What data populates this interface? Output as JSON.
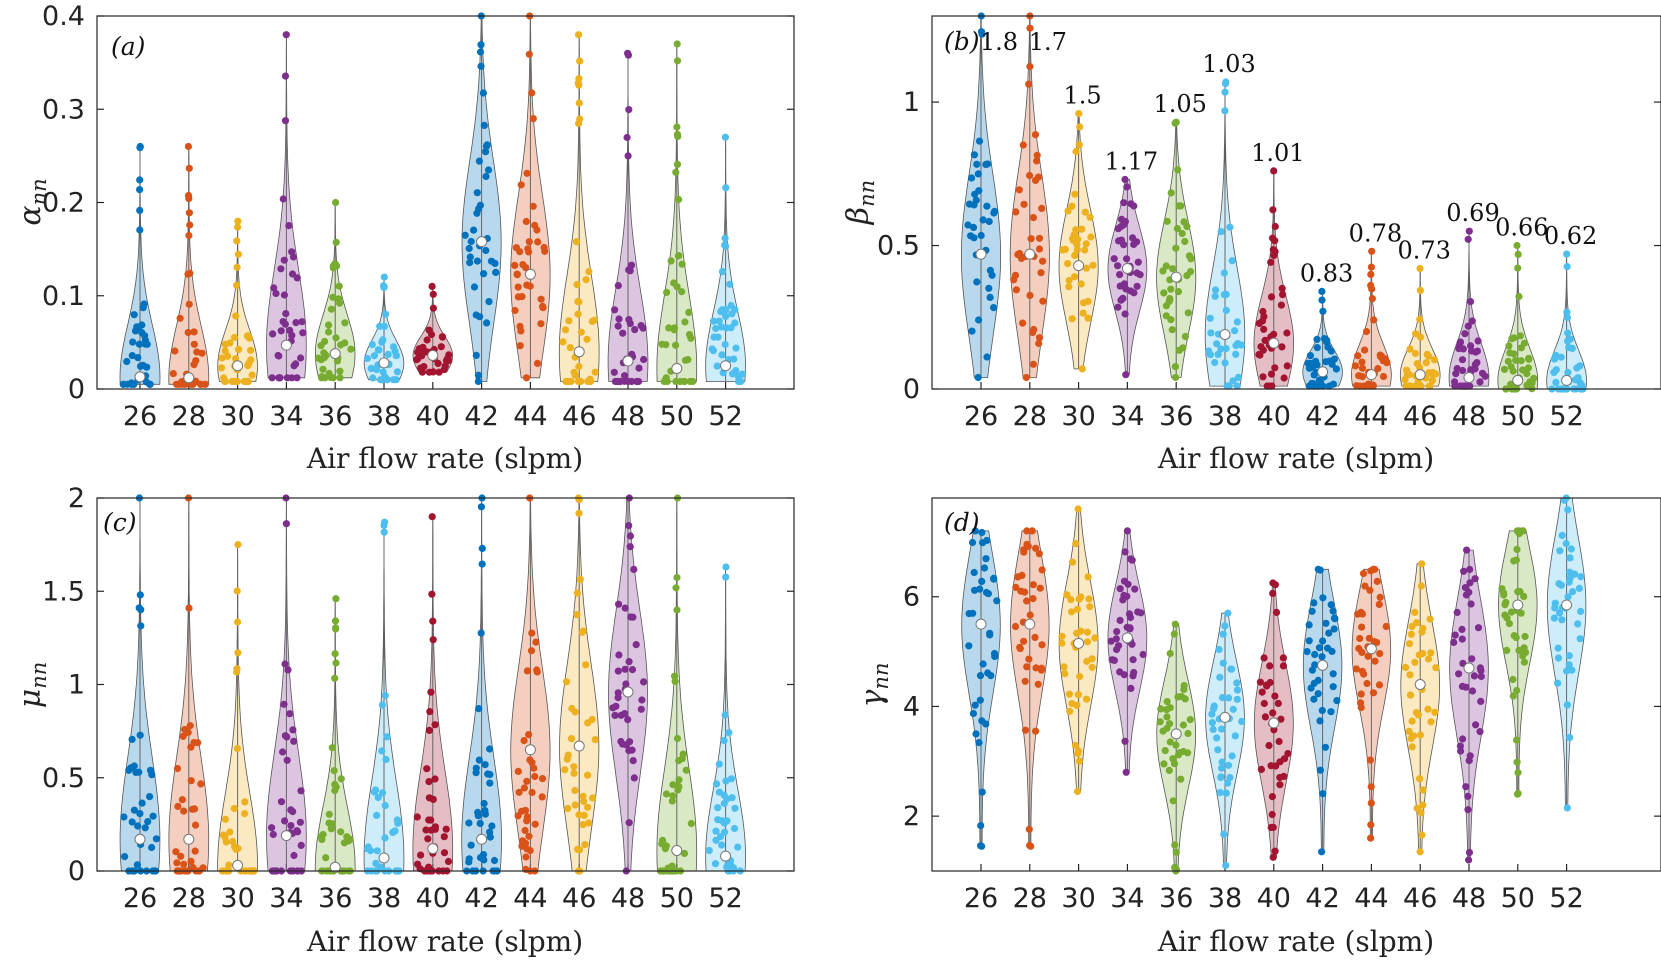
{
  "colors": {
    "26": "#0072bd",
    "28": "#d95319",
    "30": "#edb120",
    "34": "#7e2f8e",
    "36": "#77ac30",
    "38": "#4dbeee",
    "40": "#a2142f",
    "42": "#0072bd",
    "44": "#d95319",
    "46": "#edb120",
    "48": "#7e2f8e",
    "50": "#77ac30",
    "52": "#4dbeee"
  },
  "chart_data": [
    {
      "type": "violin",
      "panel": "(a)",
      "title": "",
      "xlabel": "Air flow rate (slpm)",
      "ylabel_symbol": "α",
      "ylabel_sub": "nn",
      "categories": [
        "26",
        "28",
        "30",
        "34",
        "36",
        "38",
        "40",
        "42",
        "44",
        "46",
        "48",
        "50",
        "52"
      ],
      "ylim": [
        0,
        0.4
      ],
      "yticks": [
        0,
        0.1,
        0.2,
        0.3,
        0.4
      ],
      "ytick_labels": [
        "0",
        "0.1",
        "0.2",
        "0.3",
        "0.4"
      ],
      "medians": [
        0.013,
        0.012,
        0.025,
        0.047,
        0.038,
        0.028,
        0.036,
        0.158,
        0.123,
        0.04,
        0.03,
        0.022,
        0.025
      ],
      "mins": [
        0.005,
        0.005,
        0.008,
        0.012,
        0.012,
        0.01,
        0.018,
        0.008,
        0.012,
        0.008,
        0.008,
        0.008,
        0.008
      ],
      "maxs": [
        0.26,
        0.26,
        0.18,
        0.38,
        0.2,
        0.12,
        0.11,
        0.4,
        0.4,
        0.38,
        0.36,
        0.37,
        0.27
      ],
      "annotations": []
    },
    {
      "type": "violin",
      "panel": "(b)",
      "title": "",
      "xlabel": "Air flow rate (slpm)",
      "ylabel_symbol": "β",
      "ylabel_sub": "nn",
      "categories": [
        "26",
        "28",
        "30",
        "34",
        "36",
        "38",
        "40",
        "42",
        "44",
        "46",
        "48",
        "50",
        "52"
      ],
      "ylim": [
        0,
        1.3
      ],
      "yticks": [
        0,
        0.5,
        1
      ],
      "ytick_labels": [
        "0",
        "0.5",
        "1"
      ],
      "medians": [
        0.47,
        0.47,
        0.43,
        0.42,
        0.39,
        0.19,
        0.16,
        0.06,
        0.05,
        0.05,
        0.04,
        0.03,
        0.03
      ],
      "mins": [
        0.04,
        0.04,
        0.07,
        0.05,
        0.04,
        0.01,
        0.01,
        0.01,
        0.01,
        0.01,
        0.01,
        0.0,
        0.0
      ],
      "maxs": [
        1.3,
        1.3,
        0.96,
        0.73,
        0.93,
        1.07,
        0.76,
        0.34,
        0.48,
        0.42,
        0.55,
        0.5,
        0.47
      ],
      "annotations": [
        "1.8",
        "1.7",
        "1.5",
        "1.17",
        "1.05",
        "1.03",
        "1.01",
        "0.83",
        "0.78",
        "0.73",
        "0.69",
        "0.66",
        "0.62"
      ]
    },
    {
      "type": "violin",
      "panel": "(c)",
      "title": "",
      "xlabel": "Air flow rate (slpm)",
      "ylabel_symbol": "μ",
      "ylabel_sub": "nn",
      "categories": [
        "26",
        "28",
        "30",
        "34",
        "36",
        "38",
        "40",
        "42",
        "44",
        "46",
        "48",
        "50",
        "52"
      ],
      "ylim": [
        0,
        2
      ],
      "yticks": [
        0,
        0.5,
        1,
        1.5,
        2
      ],
      "ytick_labels": [
        "0",
        "0.5",
        "1",
        "1.5",
        "2"
      ],
      "medians": [
        0.17,
        0.17,
        0.03,
        0.19,
        0.02,
        0.07,
        0.12,
        0.17,
        0.65,
        0.67,
        0.96,
        0.11,
        0.08
      ],
      "mins": [
        0.0,
        0.0,
        0.0,
        0.0,
        0.0,
        0.0,
        0.0,
        0.0,
        0.0,
        0.0,
        0.0,
        0.0,
        0.0
      ],
      "maxs": [
        2.0,
        2.0,
        1.75,
        2.0,
        1.46,
        1.87,
        1.9,
        2.0,
        2.0,
        2.0,
        2.0,
        2.0,
        1.63
      ],
      "annotations": []
    },
    {
      "type": "violin",
      "panel": "(d)",
      "title": "",
      "xlabel": "Air flow rate (slpm)",
      "ylabel_symbol": "γ",
      "ylabel_sub": "nn",
      "categories": [
        "26",
        "28",
        "30",
        "34",
        "36",
        "38",
        "40",
        "42",
        "44",
        "46",
        "48",
        "50",
        "52"
      ],
      "ylim": [
        1,
        7.8
      ],
      "yticks": [
        2,
        4,
        6
      ],
      "ytick_labels": [
        "2",
        "4",
        "6"
      ],
      "medians": [
        5.5,
        5.5,
        5.15,
        5.25,
        3.5,
        3.8,
        3.7,
        4.75,
        5.05,
        4.4,
        4.7,
        5.85,
        5.85
      ],
      "mins": [
        1.45,
        1.45,
        2.45,
        2.8,
        1.0,
        1.1,
        1.25,
        1.35,
        1.6,
        1.35,
        1.2,
        2.4,
        2.15
      ],
      "maxs": [
        7.2,
        7.2,
        7.6,
        7.2,
        5.5,
        5.7,
        6.25,
        6.5,
        6.5,
        6.6,
        6.85,
        7.2,
        7.8
      ],
      "annotations": []
    }
  ]
}
